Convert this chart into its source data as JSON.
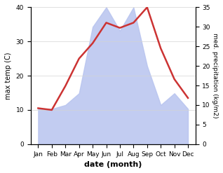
{
  "months": [
    "Jan",
    "Feb",
    "Mar",
    "Apr",
    "May",
    "Jun",
    "Jul",
    "Aug",
    "Sep",
    "Oct",
    "Nov",
    "Dec"
  ],
  "temperature": [
    10.5,
    10.0,
    17.0,
    25.0,
    29.5,
    35.5,
    34.0,
    35.5,
    40.0,
    28.0,
    19.0,
    13.5
  ],
  "precipitation": [
    9,
    9,
    10,
    13,
    30,
    35,
    29,
    35,
    20,
    10,
    13,
    9
  ],
  "temp_color": "#cc3333",
  "precip_color": "#b8c4ef",
  "xlabel": "date (month)",
  "ylabel_left": "max temp (C)",
  "ylabel_right": "med. precipitation (kg/m2)",
  "ylim_left": [
    0,
    40
  ],
  "ylim_right": [
    0,
    35
  ],
  "yticks_left": [
    0,
    10,
    20,
    30,
    40
  ],
  "yticks_right": [
    0,
    5,
    10,
    15,
    20,
    25,
    30,
    35
  ],
  "bg_color": "#ffffff",
  "line_width": 1.8
}
